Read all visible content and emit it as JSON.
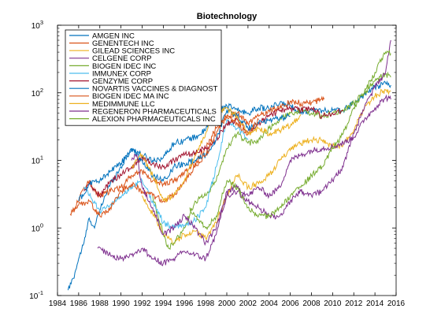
{
  "chart_data": {
    "type": "line",
    "title": "Biotechnology",
    "xlabel": "",
    "ylabel": "",
    "xlim": [
      1984,
      2016
    ],
    "ylim": [
      0.1,
      1000
    ],
    "yscale": "log",
    "grid": false,
    "legend_position": "top-left",
    "xticks": [
      1984,
      1986,
      1988,
      1990,
      1992,
      1994,
      1996,
      1998,
      2000,
      2002,
      2004,
      2006,
      2008,
      2010,
      2012,
      2014,
      2016
    ],
    "xtick_labels": [
      "1984",
      "1986",
      "1988",
      "1990",
      "1992",
      "1994",
      "1996",
      "1998",
      "2000",
      "2002",
      "2004",
      "2006",
      "2008",
      "2010",
      "2012",
      "2014",
      "2016"
    ],
    "yticks": [
      {
        "value": 0.1,
        "base": "10",
        "exp": "-1"
      },
      {
        "value": 1,
        "base": "10",
        "exp": "0"
      },
      {
        "value": 10,
        "base": "10",
        "exp": "1"
      },
      {
        "value": 100,
        "base": "10",
        "exp": "2"
      },
      {
        "value": 1000,
        "base": "10",
        "exp": "3"
      }
    ],
    "series": [
      {
        "name": "AMGEN INC",
        "color": "#0072bd",
        "x": [
          1985.0,
          1985.5,
          1986.0,
          1986.5,
          1987.0,
          1987.5,
          1988.0,
          1988.5,
          1989.0,
          1990.0,
          1991.0,
          1992.0,
          1993.0,
          1994.0,
          1995.0,
          1996.0,
          1997.0,
          1998.0,
          1999.0,
          2000.0,
          2001.0,
          2002.0,
          2003.0,
          2004.0,
          2005.0,
          2006.0,
          2007.0,
          2008.0,
          2009.0,
          2010.0,
          2011.0,
          2012.0,
          2013.0,
          2014.0,
          2015.0,
          2015.5
        ],
        "y": [
          0.12,
          0.18,
          0.35,
          0.6,
          1.4,
          1.0,
          1.8,
          3.0,
          4.5,
          8.0,
          15.0,
          12.0,
          10.0,
          11.0,
          18.0,
          20.0,
          22.0,
          28.0,
          50.0,
          65.0,
          55.0,
          50.0,
          60.0,
          58.0,
          70.0,
          65.0,
          52.0,
          55.0,
          55.0,
          55.0,
          55.0,
          70.0,
          95.0,
          120.0,
          140.0,
          130.0
        ]
      },
      {
        "name": "GENENTECH INC",
        "color": "#d95319",
        "x": [
          1985.2,
          1986.0,
          1986.5,
          1987.0,
          1987.5,
          1988.0,
          1989.0,
          1990.0,
          1991.0,
          1992.0,
          1993.0,
          1994.0,
          1995.0,
          1996.0,
          1997.0,
          1998.0,
          1999.0,
          2000.0,
          2001.0,
          2002.0,
          2003.0,
          2004.0,
          2005.0,
          2006.0,
          2007.0,
          2008.0,
          2009.2
        ],
        "y": [
          1.6,
          2.5,
          4.0,
          5.0,
          3.5,
          3.0,
          3.5,
          4.0,
          6.0,
          7.0,
          5.0,
          4.5,
          5.0,
          6.5,
          9.0,
          15.0,
          30.0,
          45.0,
          50.0,
          35.0,
          45.0,
          55.0,
          60.0,
          75.0,
          70.0,
          72.0,
          80.0
        ]
      },
      {
        "name": "GILEAD SCIENCES INC",
        "color": "#edb120",
        "x": [
          1992.0,
          1992.5,
          1993.0,
          1994.0,
          1995.0,
          1996.0,
          1997.0,
          1998.0,
          1999.0,
          2000.0,
          2001.0,
          2002.0,
          2003.0,
          2004.0,
          2005.0,
          2006.0,
          2007.0,
          2008.0,
          2009.0,
          2010.0,
          2011.0,
          2012.0,
          2013.0,
          2014.0,
          2015.0,
          2015.5
        ],
        "y": [
          3.0,
          2.2,
          1.6,
          0.8,
          0.6,
          0.8,
          0.9,
          0.7,
          1.2,
          3.0,
          6.0,
          4.0,
          4.5,
          6.0,
          10.0,
          14.0,
          18.0,
          20.0,
          20.0,
          16.0,
          17.0,
          28.0,
          60.0,
          90.0,
          110.0,
          105.0
        ]
      },
      {
        "name": "CELGENE CORP",
        "color": "#7e2f8e",
        "x": [
          1987.8,
          1988.5,
          1989.0,
          1990.0,
          1991.0,
          1992.0,
          1993.0,
          1994.0,
          1995.0,
          1996.0,
          1997.0,
          1998.0,
          1999.0,
          2000.0,
          2001.0,
          2002.0,
          2003.0,
          2004.0,
          2005.0,
          2006.0,
          2007.0,
          2008.0,
          2009.0,
          2010.0,
          2011.0,
          2012.0,
          2013.0,
          2014.0,
          2015.0,
          2015.5
        ],
        "y": [
          0.5,
          0.45,
          0.4,
          0.35,
          0.4,
          0.5,
          0.35,
          0.3,
          0.35,
          0.45,
          0.4,
          0.35,
          0.8,
          3.5,
          4.0,
          3.0,
          4.0,
          3.0,
          4.0,
          10.0,
          12.0,
          14.0,
          15.0,
          16.0,
          18.0,
          22.0,
          40.0,
          60.0,
          85.0,
          80.0
        ]
      },
      {
        "name": "BIOGEN IDEC INC",
        "color": "#77ac30",
        "x": [
          1993.0,
          1993.5,
          1994.0,
          1994.5,
          1995.0,
          1996.0,
          1997.0,
          1998.0,
          1999.0,
          2000.0,
          2001.0,
          2002.0,
          2003.0,
          2004.0,
          2005.0,
          2006.0,
          2007.0,
          2008.0,
          2009.0,
          2010.0,
          2011.0,
          2012.0,
          2013.0,
          2014.0,
          2015.0,
          2015.5
        ],
        "y": [
          3.0,
          1.5,
          0.8,
          0.5,
          0.6,
          1.0,
          2.5,
          3.0,
          5.0,
          15.0,
          25.0,
          18.0,
          20.0,
          30.0,
          40.0,
          50.0,
          55.0,
          50.0,
          45.0,
          50.0,
          55.0,
          70.0,
          100.0,
          150.0,
          190.0,
          170.0
        ]
      },
      {
        "name": "IMMUNEX CORP",
        "color": "#4dbeee",
        "x": [
          1986.5,
          1987.0,
          1988.0,
          1989.0,
          1990.0,
          1991.0,
          1992.0,
          1993.0,
          1994.0,
          1995.0,
          1996.0,
          1997.0,
          1998.0,
          1999.0,
          2000.0,
          2001.0,
          2002.0
        ],
        "y": [
          4.0,
          3.0,
          1.8,
          2.2,
          2.8,
          4.0,
          5.0,
          2.5,
          1.2,
          1.0,
          1.1,
          1.3,
          2.0,
          8.0,
          40.0,
          30.0,
          20.0
        ]
      },
      {
        "name": "GENZYME CORP",
        "color": "#a2142f",
        "x": [
          1986.5,
          1987.0,
          1988.0,
          1989.0,
          1990.0,
          1991.0,
          1992.0,
          1993.0,
          1994.0,
          1995.0,
          1996.0,
          1997.0,
          1998.0,
          1999.0,
          2000.0,
          2001.0,
          2002.0,
          2003.0,
          2004.0,
          2005.0,
          2006.0,
          2007.0,
          2008.0,
          2009.0,
          2010.0,
          2011.0
        ],
        "y": [
          3.5,
          4.5,
          3.0,
          5.0,
          6.0,
          8.0,
          11.0,
          9.0,
          8.0,
          10.0,
          12.0,
          13.0,
          15.0,
          20.0,
          35.0,
          40.0,
          25.0,
          35.0,
          45.0,
          55.0,
          58.0,
          55.0,
          60.0,
          45.0,
          50.0,
          55.0
        ]
      },
      {
        "name": "NOVARTIS VACCINES & DIAGNOST",
        "color": "#0072bd",
        "x": [
          1986.0,
          1987.0,
          1988.0,
          1989.0,
          1990.0,
          1991.0,
          1992.0,
          1993.0,
          1994.0,
          1995.0,
          1996.0,
          1997.0,
          1998.0,
          1999.0,
          2000.0,
          2001.0,
          2002.0,
          2003.0,
          2004.0,
          2005.0,
          2006.0
        ],
        "y": [
          2.5,
          4.5,
          5.0,
          7.0,
          9.0,
          15.0,
          10.0,
          6.0,
          5.0,
          8.0,
          9.0,
          10.0,
          12.0,
          20.0,
          55.0,
          45.0,
          30.0,
          35.0,
          40.0,
          42.0,
          45.0
        ]
      },
      {
        "name": "BIOGEN IDEC MA INC",
        "color": "#d95319",
        "x": [
          1985.5,
          1986.0,
          1987.0,
          1988.0,
          1989.0,
          1990.0,
          1991.0,
          1992.0,
          1993.0,
          1994.0,
          1995.0,
          1996.0,
          1997.0,
          1998.0,
          1999.0,
          2000.0,
          2001.0,
          2002.0,
          2003.0
        ],
        "y": [
          1.8,
          2.2,
          2.5,
          1.5,
          2.0,
          3.5,
          4.5,
          3.5,
          3.0,
          2.5,
          3.0,
          5.0,
          8.0,
          12.0,
          25.0,
          45.0,
          35.0,
          25.0,
          40.0
        ]
      },
      {
        "name": "MEDIMMUNE LLC",
        "color": "#edb120",
        "x": [
          1991.0,
          1991.5,
          1992.0,
          1993.0,
          1994.0,
          1995.0,
          1996.0,
          1997.0,
          1998.0,
          1999.0,
          2000.0,
          2001.0,
          2002.0,
          2003.0,
          2004.0,
          2005.0,
          2006.0,
          2007.0
        ],
        "y": [
          8.0,
          10.0,
          12.0,
          6.0,
          2.5,
          3.0,
          5.0,
          12.0,
          25.0,
          50.0,
          60.0,
          45.0,
          25.0,
          30.0,
          25.0,
          28.0,
          32.0,
          48.0
        ]
      },
      {
        "name": "REGENERON PHARMACEUTICALS",
        "color": "#7e2f8e",
        "x": [
          1991.0,
          1991.5,
          1992.0,
          1993.0,
          1994.0,
          1995.0,
          1996.0,
          1997.0,
          1998.0,
          1999.0,
          2000.0,
          2001.0,
          2002.0,
          2003.0,
          2004.0,
          2005.0,
          2006.0,
          2007.0,
          2008.0,
          2009.0,
          2010.0,
          2011.0,
          2012.0,
          2013.0,
          2014.0,
          2015.0,
          2015.5
        ],
        "y": [
          10.0,
          12.0,
          4.0,
          2.0,
          0.8,
          1.0,
          1.5,
          1.0,
          0.6,
          1.0,
          3.0,
          3.5,
          2.5,
          2.0,
          1.5,
          1.5,
          2.5,
          3.5,
          3.0,
          3.5,
          5.0,
          8.0,
          25.0,
          60.0,
          120.0,
          200.0,
          600.0
        ]
      },
      {
        "name": "ALEXION PHARMACEUTICALS INC",
        "color": "#77ac30",
        "x": [
          1996.5,
          1997.0,
          1998.0,
          1999.0,
          2000.0,
          2001.0,
          2002.0,
          2003.0,
          2004.0,
          2005.0,
          2006.0,
          2007.0,
          2008.0,
          2009.0,
          2010.0,
          2011.0,
          2012.0,
          2013.0,
          2014.0,
          2015.0,
          2015.5
        ],
        "y": [
          2.0,
          1.5,
          1.0,
          1.5,
          5.0,
          4.0,
          2.0,
          1.5,
          1.5,
          2.0,
          3.0,
          4.0,
          6.0,
          8.0,
          15.0,
          25.0,
          60.0,
          100.0,
          200.0,
          400.0,
          380.0
        ]
      }
    ]
  }
}
